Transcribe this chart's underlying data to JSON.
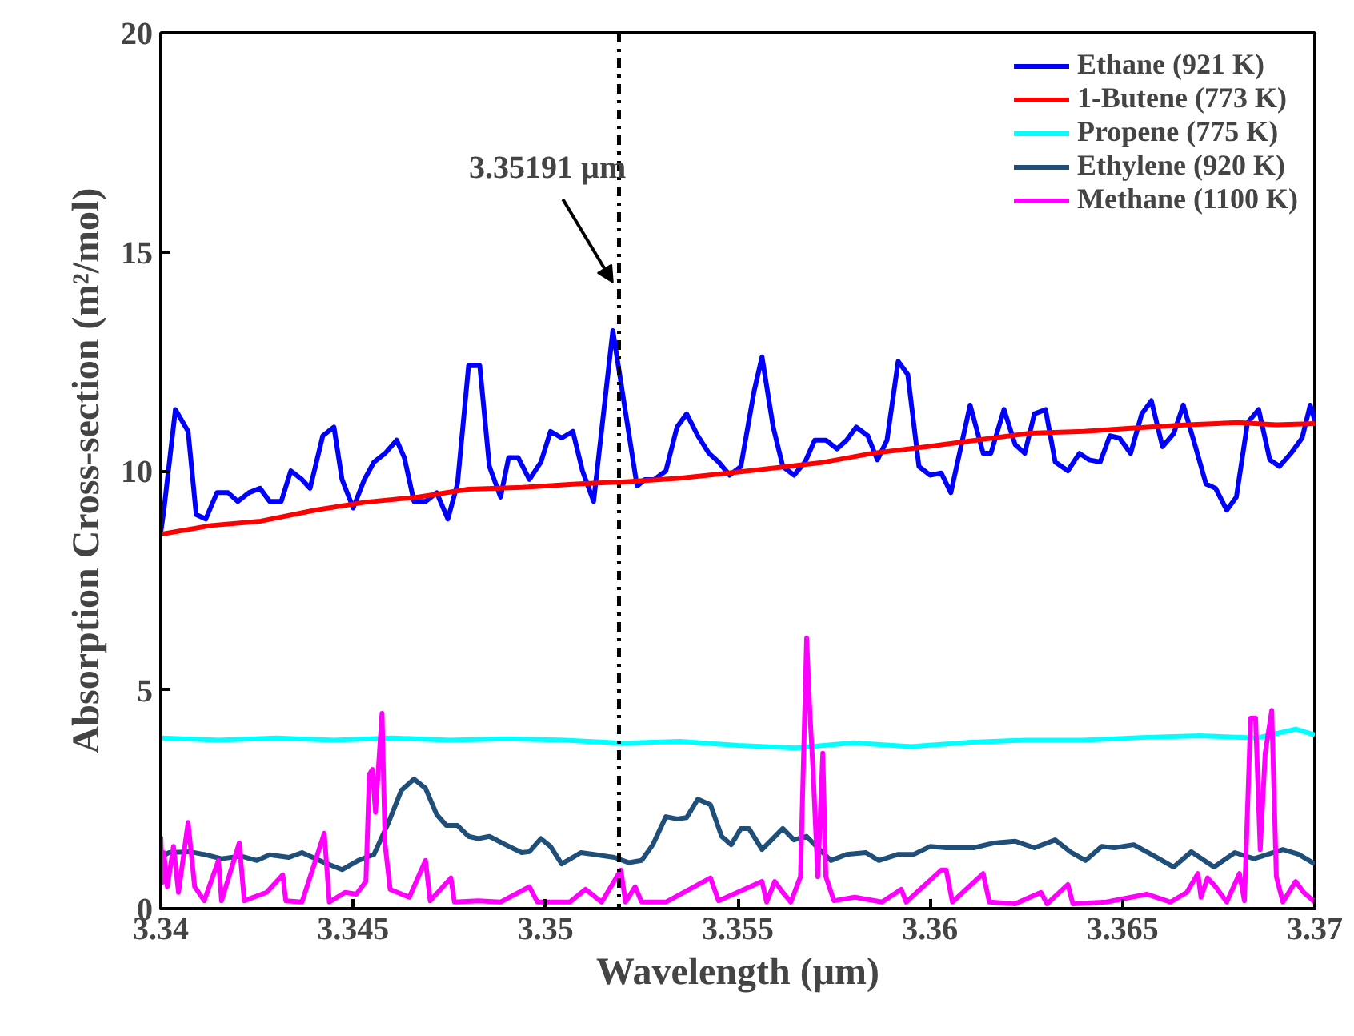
{
  "chart_data": {
    "type": "line",
    "xlabel": "Wavelength (μm)",
    "ylabel": "Absorption Cross-section (m²/mol)",
    "xlim": [
      3.34,
      3.37
    ],
    "ylim": [
      0,
      20
    ],
    "xticks": [
      3.34,
      3.345,
      3.35,
      3.355,
      3.36,
      3.365,
      3.37
    ],
    "yticks": [
      0,
      5,
      10,
      15,
      20
    ],
    "grid": false,
    "legend": "top right",
    "line_style": "solid",
    "marker": "none",
    "ref_lines": [
      {
        "axis": "x",
        "value": 3.35191,
        "color": "#000000",
        "line_style": "dashdot"
      }
    ],
    "annotations": [
      {
        "text": "3.35191 µm",
        "x": 3.35175,
        "y": 14.3
      }
    ],
    "series": [
      {
        "name": "Ethane (921 K)",
        "color": "#0000ff",
        "x": [
          3.34,
          3.34008,
          3.34038,
          3.34071,
          3.34092,
          3.34117,
          3.34146,
          3.34175,
          3.342,
          3.34229,
          3.34258,
          3.34283,
          3.34313,
          3.34338,
          3.34367,
          3.34388,
          3.34421,
          3.3445,
          3.34471,
          3.345,
          3.34529,
          3.34554,
          3.34583,
          3.34613,
          3.34633,
          3.34658,
          3.34688,
          3.34717,
          3.34746,
          3.34771,
          3.348,
          3.34829,
          3.34854,
          3.34883,
          3.34904,
          3.34929,
          3.34958,
          3.34988,
          3.35013,
          3.35042,
          3.35071,
          3.35096,
          3.35125,
          3.35175,
          3.35238,
          3.35258,
          3.35283,
          3.35313,
          3.35342,
          3.35367,
          3.35396,
          3.35425,
          3.3545,
          3.35479,
          3.35508,
          3.35542,
          3.35563,
          3.35592,
          3.35617,
          3.35646,
          3.35675,
          3.357,
          3.35729,
          3.35758,
          3.35783,
          3.35808,
          3.35838,
          3.35863,
          3.35888,
          3.35917,
          3.35942,
          3.35971,
          3.36,
          3.36029,
          3.36054,
          3.36104,
          3.36138,
          3.36158,
          3.36192,
          3.36221,
          3.36246,
          3.36271,
          3.363,
          3.36325,
          3.36358,
          3.36388,
          3.36413,
          3.36442,
          3.36467,
          3.36492,
          3.36521,
          3.3655,
          3.36575,
          3.36604,
          3.36633,
          3.36658,
          3.36688,
          3.36717,
          3.36742,
          3.36771,
          3.36796,
          3.36825,
          3.36854,
          3.36883,
          3.36908,
          3.36938,
          3.36967,
          3.36988,
          3.37
        ],
        "values": [
          8.6,
          9.1,
          11.4,
          10.9,
          9.0,
          8.9,
          9.5,
          9.5,
          9.3,
          9.5,
          9.6,
          9.3,
          9.3,
          10.0,
          9.8,
          9.6,
          10.8,
          11.0,
          9.8,
          9.15,
          9.8,
          10.2,
          10.4,
          10.7,
          10.3,
          9.3,
          9.3,
          9.5,
          8.9,
          9.7,
          12.4,
          12.4,
          10.1,
          9.4,
          10.3,
          10.3,
          9.8,
          10.2,
          10.9,
          10.75,
          10.9,
          10.0,
          9.3,
          13.2,
          9.65,
          9.8,
          9.8,
          10.0,
          11.0,
          11.3,
          10.8,
          10.4,
          10.2,
          9.9,
          10.1,
          11.8,
          12.6,
          11.0,
          10.1,
          9.9,
          10.2,
          10.7,
          10.7,
          10.5,
          10.7,
          11.0,
          10.8,
          10.25,
          10.7,
          12.5,
          12.2,
          10.1,
          9.9,
          9.95,
          9.5,
          11.5,
          10.4,
          10.4,
          11.4,
          10.6,
          10.4,
          11.3,
          11.4,
          10.2,
          10.0,
          10.4,
          10.25,
          10.2,
          10.8,
          10.75,
          10.4,
          11.3,
          11.6,
          10.55,
          10.85,
          11.5,
          10.6,
          9.7,
          9.6,
          9.1,
          9.4,
          11.1,
          11.4,
          10.25,
          10.1,
          10.4,
          10.75,
          11.5,
          11.15
        ]
      },
      {
        "name": "1-Butene (773 K)",
        "color": "#ff0000",
        "x": [
          3.34,
          3.3413,
          3.3426,
          3.344,
          3.3453,
          3.3467,
          3.348,
          3.3494,
          3.3508,
          3.3521,
          3.3535,
          3.3553,
          3.3572,
          3.3585,
          3.3599,
          3.3612,
          3.3626,
          3.364,
          3.3653,
          3.3667,
          3.368,
          3.369,
          3.37
        ],
        "values": [
          8.55,
          8.75,
          8.85,
          9.1,
          9.28,
          9.4,
          9.58,
          9.62,
          9.7,
          9.75,
          9.83,
          10.0,
          10.19,
          10.4,
          10.55,
          10.7,
          10.86,
          10.9,
          10.98,
          11.05,
          11.1,
          11.05,
          11.08
        ]
      },
      {
        "name": "Propene (775 K)",
        "color": "#00ffff",
        "x": [
          3.34,
          3.3415,
          3.343,
          3.3445,
          3.346,
          3.3475,
          3.349,
          3.3505,
          3.352,
          3.3535,
          3.355,
          3.3565,
          3.358,
          3.3595,
          3.361,
          3.3625,
          3.364,
          3.3655,
          3.367,
          3.3685,
          3.3695,
          3.37
        ],
        "values": [
          3.9,
          3.85,
          3.9,
          3.85,
          3.9,
          3.85,
          3.88,
          3.85,
          3.78,
          3.82,
          3.73,
          3.67,
          3.79,
          3.7,
          3.8,
          3.85,
          3.85,
          3.91,
          3.95,
          3.9,
          4.1,
          3.97
        ]
      },
      {
        "name": "Ethylene (920 K)",
        "color": "#1f4e79",
        "x": [
          3.34,
          3.34021,
          3.34075,
          3.34117,
          3.34158,
          3.34208,
          3.3425,
          3.34283,
          3.34333,
          3.34367,
          3.34425,
          3.34471,
          3.34513,
          3.34554,
          3.34592,
          3.34625,
          3.34658,
          3.34688,
          3.34717,
          3.34742,
          3.34771,
          3.348,
          3.34825,
          3.34854,
          3.34896,
          3.34938,
          3.34958,
          3.34988,
          3.35013,
          3.35042,
          3.35092,
          3.35133,
          3.35179,
          3.35217,
          3.3525,
          3.35279,
          3.35313,
          3.35342,
          3.35367,
          3.35396,
          3.35429,
          3.35458,
          3.35483,
          3.35508,
          3.35529,
          3.35563,
          3.35617,
          3.35646,
          3.35679,
          3.357,
          3.35742,
          3.35783,
          3.35833,
          3.35867,
          3.35917,
          3.35958,
          3.36,
          3.36042,
          3.36113,
          3.36167,
          3.36221,
          3.36271,
          3.36325,
          3.36367,
          3.36404,
          3.36446,
          3.36479,
          3.36529,
          3.36583,
          3.36633,
          3.36679,
          3.36738,
          3.36792,
          3.36842,
          3.36917,
          3.36958,
          3.37
        ],
        "values": [
          1.17,
          1.28,
          1.3,
          1.23,
          1.14,
          1.2,
          1.1,
          1.23,
          1.17,
          1.28,
          1.05,
          0.89,
          1.1,
          1.24,
          1.97,
          2.7,
          2.96,
          2.75,
          2.15,
          1.9,
          1.9,
          1.65,
          1.6,
          1.65,
          1.46,
          1.28,
          1.3,
          1.6,
          1.42,
          1.02,
          1.28,
          1.23,
          1.17,
          1.05,
          1.1,
          1.46,
          2.1,
          2.05,
          2.08,
          2.5,
          2.37,
          1.65,
          1.46,
          1.83,
          1.83,
          1.35,
          1.83,
          1.57,
          1.65,
          1.46,
          1.1,
          1.24,
          1.28,
          1.1,
          1.24,
          1.24,
          1.42,
          1.39,
          1.39,
          1.5,
          1.54,
          1.39,
          1.57,
          1.28,
          1.1,
          1.42,
          1.39,
          1.46,
          1.2,
          0.95,
          1.3,
          0.95,
          1.28,
          1.14,
          1.35,
          1.24,
          1.02
        ]
      },
      {
        "name": "Methane (1100 K)",
        "color": "#ff00ff",
        "x": [
          3.34,
          3.34004,
          3.34008,
          3.34017,
          3.34033,
          3.34046,
          3.34071,
          3.34088,
          3.34113,
          3.3415,
          3.34158,
          3.34204,
          3.34217,
          3.34275,
          3.34317,
          3.34325,
          3.34367,
          3.34425,
          3.34438,
          3.34479,
          3.34508,
          3.34533,
          3.34542,
          3.3455,
          3.34558,
          3.34575,
          3.34583,
          3.34596,
          3.34646,
          3.34688,
          3.347,
          3.34754,
          3.34763,
          3.34825,
          3.34883,
          3.34958,
          3.34979,
          3.35063,
          3.35104,
          3.35146,
          3.35196,
          3.35208,
          3.35233,
          3.3525,
          3.35313,
          3.35429,
          3.3545,
          3.35563,
          3.35575,
          3.35596,
          3.35617,
          3.35638,
          3.35663,
          3.35679,
          3.35688,
          3.35696,
          3.35708,
          3.35721,
          3.35729,
          3.3575,
          3.35804,
          3.35875,
          3.35925,
          3.35938,
          3.36029,
          3.36042,
          3.36058,
          3.36138,
          3.36154,
          3.36221,
          3.36288,
          3.36304,
          3.36358,
          3.36371,
          3.36458,
          3.36563,
          3.36625,
          3.36667,
          3.36696,
          3.36704,
          3.36721,
          3.36742,
          3.36771,
          3.36804,
          3.36817,
          3.36833,
          3.36846,
          3.36858,
          3.36871,
          3.36888,
          3.369,
          3.36917,
          3.3695,
          3.36971,
          3.37
        ],
        "values": [
          1.65,
          0.6,
          1.28,
          0.5,
          1.42,
          0.37,
          1.97,
          0.5,
          0.18,
          1.1,
          0.18,
          1.5,
          0.18,
          0.37,
          0.77,
          0.18,
          0.15,
          1.72,
          0.15,
          0.37,
          0.33,
          0.62,
          3.07,
          3.18,
          2.2,
          4.46,
          1.46,
          0.44,
          0.26,
          1.1,
          0.18,
          0.7,
          0.15,
          0.18,
          0.15,
          0.5,
          0.15,
          0.15,
          0.44,
          0.15,
          0.88,
          0.15,
          0.5,
          0.15,
          0.15,
          0.7,
          0.18,
          0.62,
          0.15,
          0.62,
          0.37,
          0.15,
          0.73,
          6.18,
          4.39,
          3.1,
          0.73,
          3.55,
          0.73,
          0.18,
          0.26,
          0.15,
          0.44,
          0.15,
          0.88,
          0.88,
          0.15,
          0.8,
          0.15,
          0.11,
          0.37,
          0.11,
          0.55,
          0.11,
          0.15,
          0.33,
          0.15,
          0.37,
          0.8,
          0.26,
          0.7,
          0.5,
          0.15,
          0.8,
          0.18,
          4.35,
          4.35,
          1.35,
          3.55,
          4.53,
          0.73,
          0.15,
          0.62,
          0.37,
          0.15
        ]
      }
    ]
  }
}
